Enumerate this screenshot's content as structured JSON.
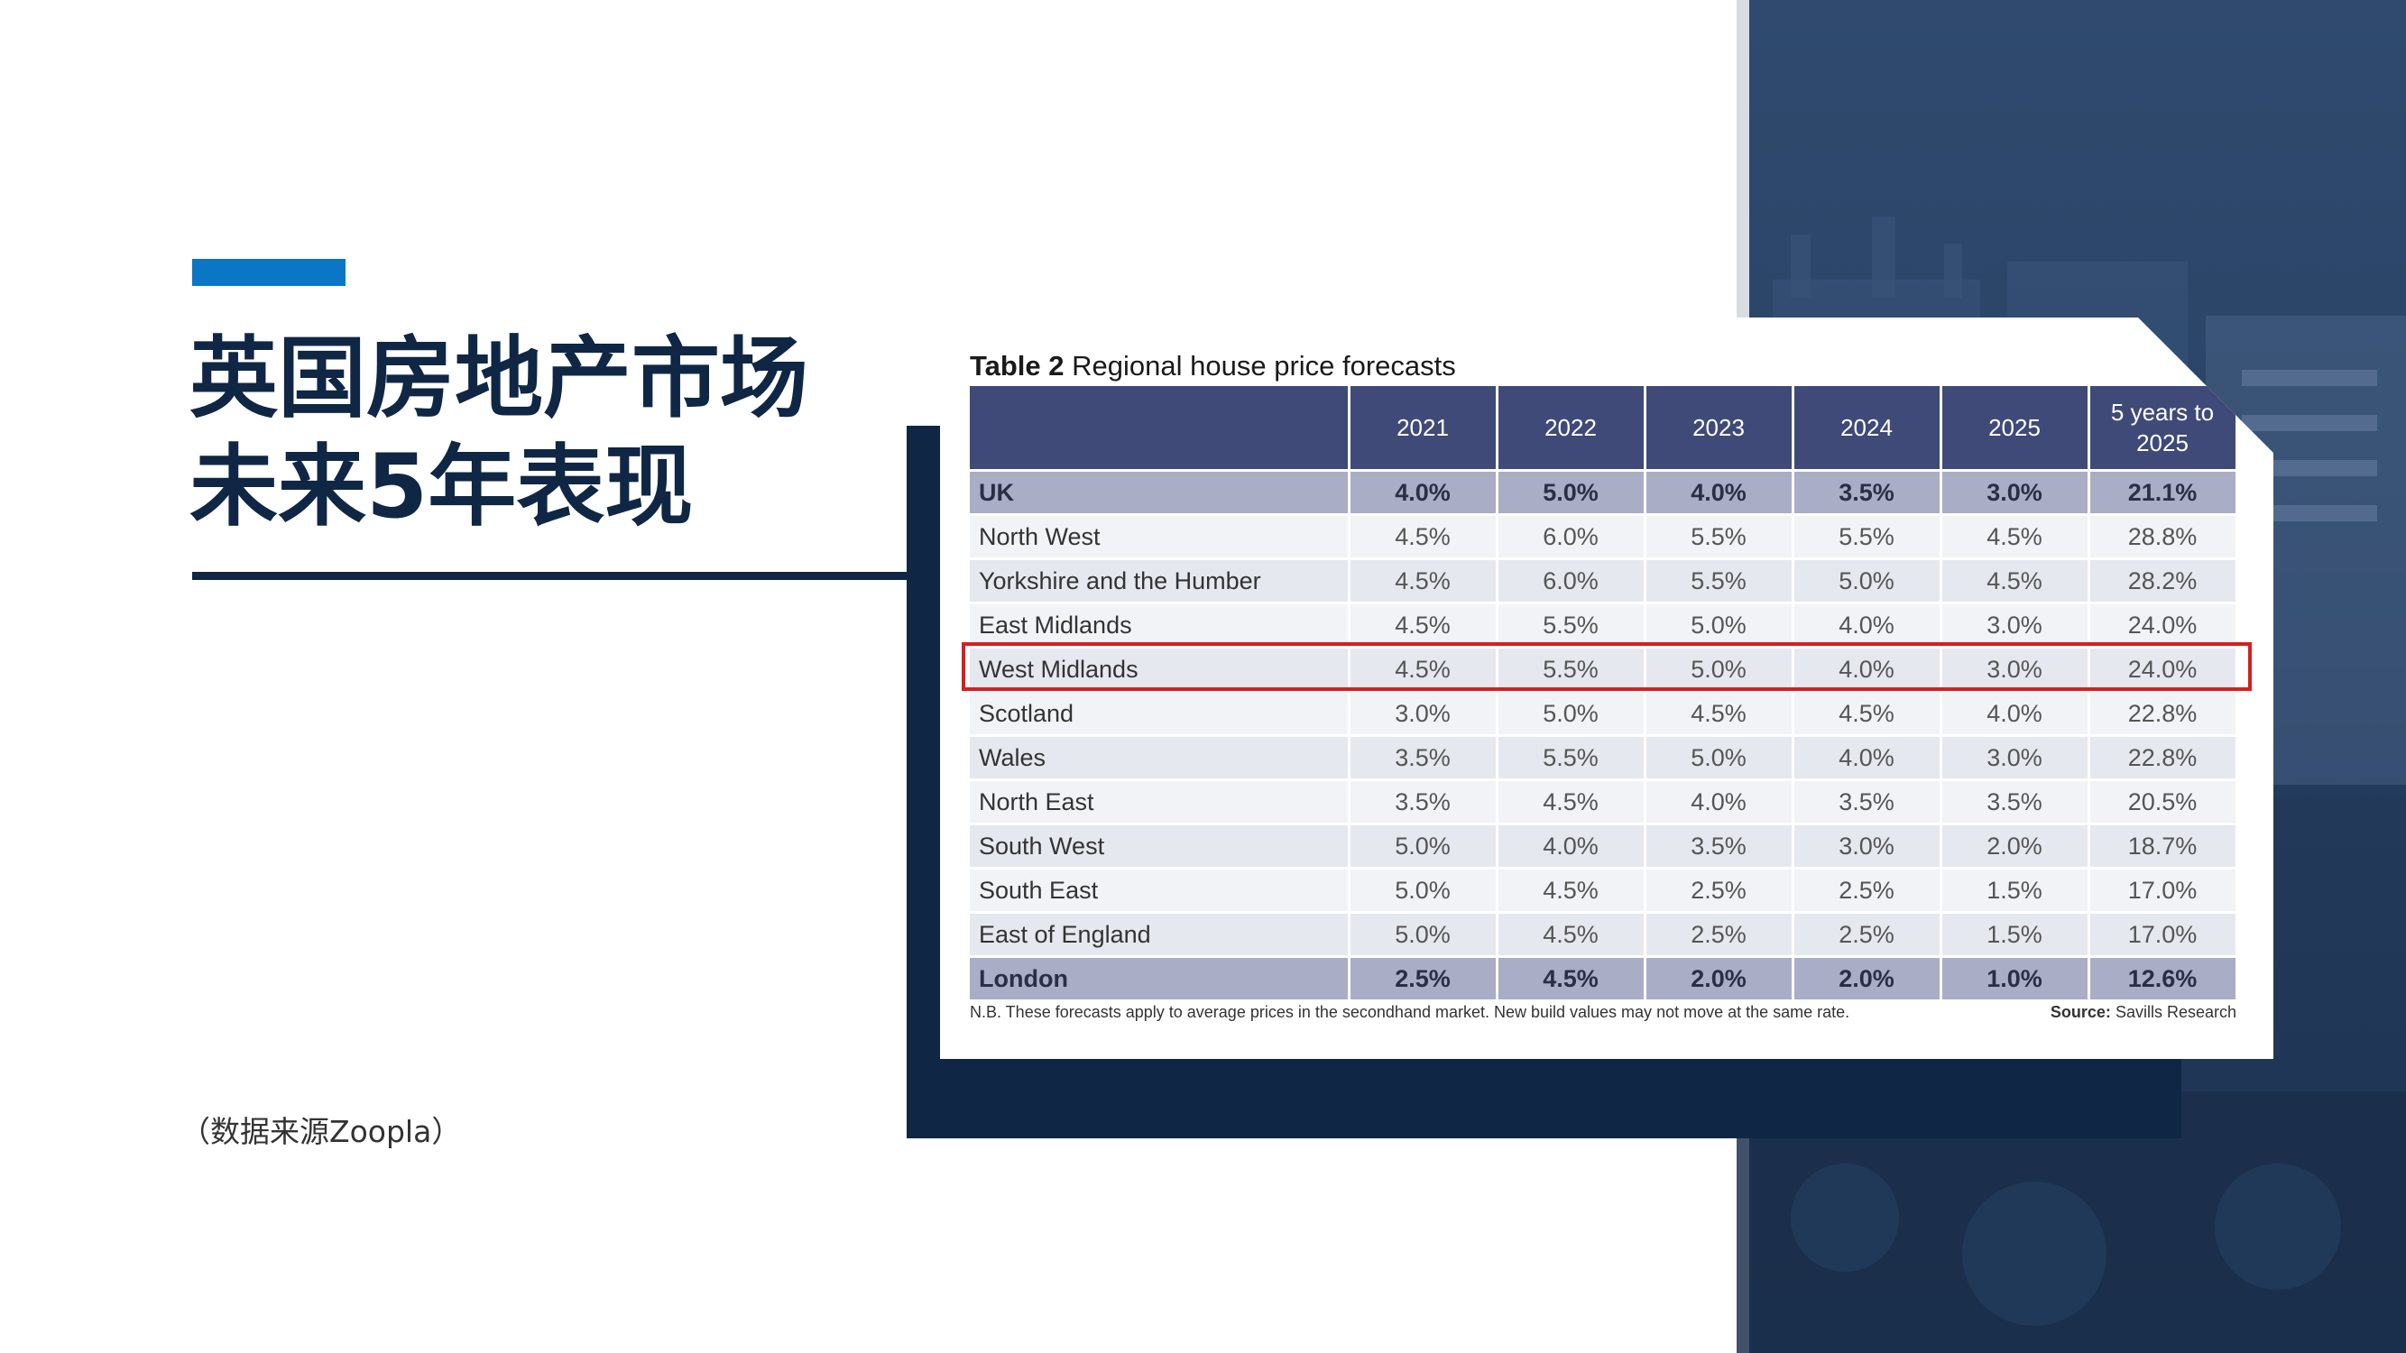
{
  "slide": {
    "title_line1": "英国房地产市场",
    "title_line2": "未来5年表现",
    "source_note": "（数据来源Zoopla）"
  },
  "table": {
    "caption_bold": "Table 2",
    "caption_rest": " Regional house price forecasts",
    "headers": [
      "",
      "2021",
      "2022",
      "2023",
      "2024",
      "2025",
      "5 years to 2025"
    ],
    "rows": [
      {
        "region": "UK",
        "values": [
          "4.0%",
          "5.0%",
          "4.0%",
          "3.5%",
          "3.0%",
          "21.1%"
        ],
        "summary": true
      },
      {
        "region": "North West",
        "values": [
          "4.5%",
          "6.0%",
          "5.5%",
          "5.5%",
          "4.5%",
          "28.8%"
        ]
      },
      {
        "region": "Yorkshire and the Humber",
        "values": [
          "4.5%",
          "6.0%",
          "5.5%",
          "5.0%",
          "4.5%",
          "28.2%"
        ]
      },
      {
        "region": "East Midlands",
        "values": [
          "4.5%",
          "5.5%",
          "5.0%",
          "4.0%",
          "3.0%",
          "24.0%"
        ]
      },
      {
        "region": "West Midlands",
        "values": [
          "4.5%",
          "5.5%",
          "5.0%",
          "4.0%",
          "3.0%",
          "24.0%"
        ],
        "highlighted": true
      },
      {
        "region": "Scotland",
        "values": [
          "3.0%",
          "5.0%",
          "4.5%",
          "4.5%",
          "4.0%",
          "22.8%"
        ]
      },
      {
        "region": "Wales",
        "values": [
          "3.5%",
          "5.5%",
          "5.0%",
          "4.0%",
          "3.0%",
          "22.8%"
        ]
      },
      {
        "region": "North East",
        "values": [
          "3.5%",
          "4.5%",
          "4.0%",
          "3.5%",
          "3.5%",
          "20.5%"
        ]
      },
      {
        "region": "South West",
        "values": [
          "5.0%",
          "4.0%",
          "3.5%",
          "3.0%",
          "2.0%",
          "18.7%"
        ]
      },
      {
        "region": "South East",
        "values": [
          "5.0%",
          "4.5%",
          "2.5%",
          "2.5%",
          "1.5%",
          "17.0%"
        ]
      },
      {
        "region": "East of England",
        "values": [
          "5.0%",
          "4.5%",
          "2.5%",
          "2.5%",
          "1.5%",
          "17.0%"
        ]
      },
      {
        "region": "London",
        "values": [
          "2.5%",
          "4.5%",
          "2.0%",
          "2.0%",
          "1.0%",
          "12.6%"
        ],
        "summary": true
      }
    ],
    "footnote": "N.B. These forecasts apply to average prices in the secondhand market. New build values may not move at the same rate.",
    "source_label": "Source:",
    "source_value": " Savills Research"
  },
  "colors": {
    "navy": "#0f2744",
    "accent_blue": "#0b76c5",
    "header_purple": "#3f4a78",
    "summary_row": "#a9adc6",
    "highlight_red": "#d81e1e"
  }
}
